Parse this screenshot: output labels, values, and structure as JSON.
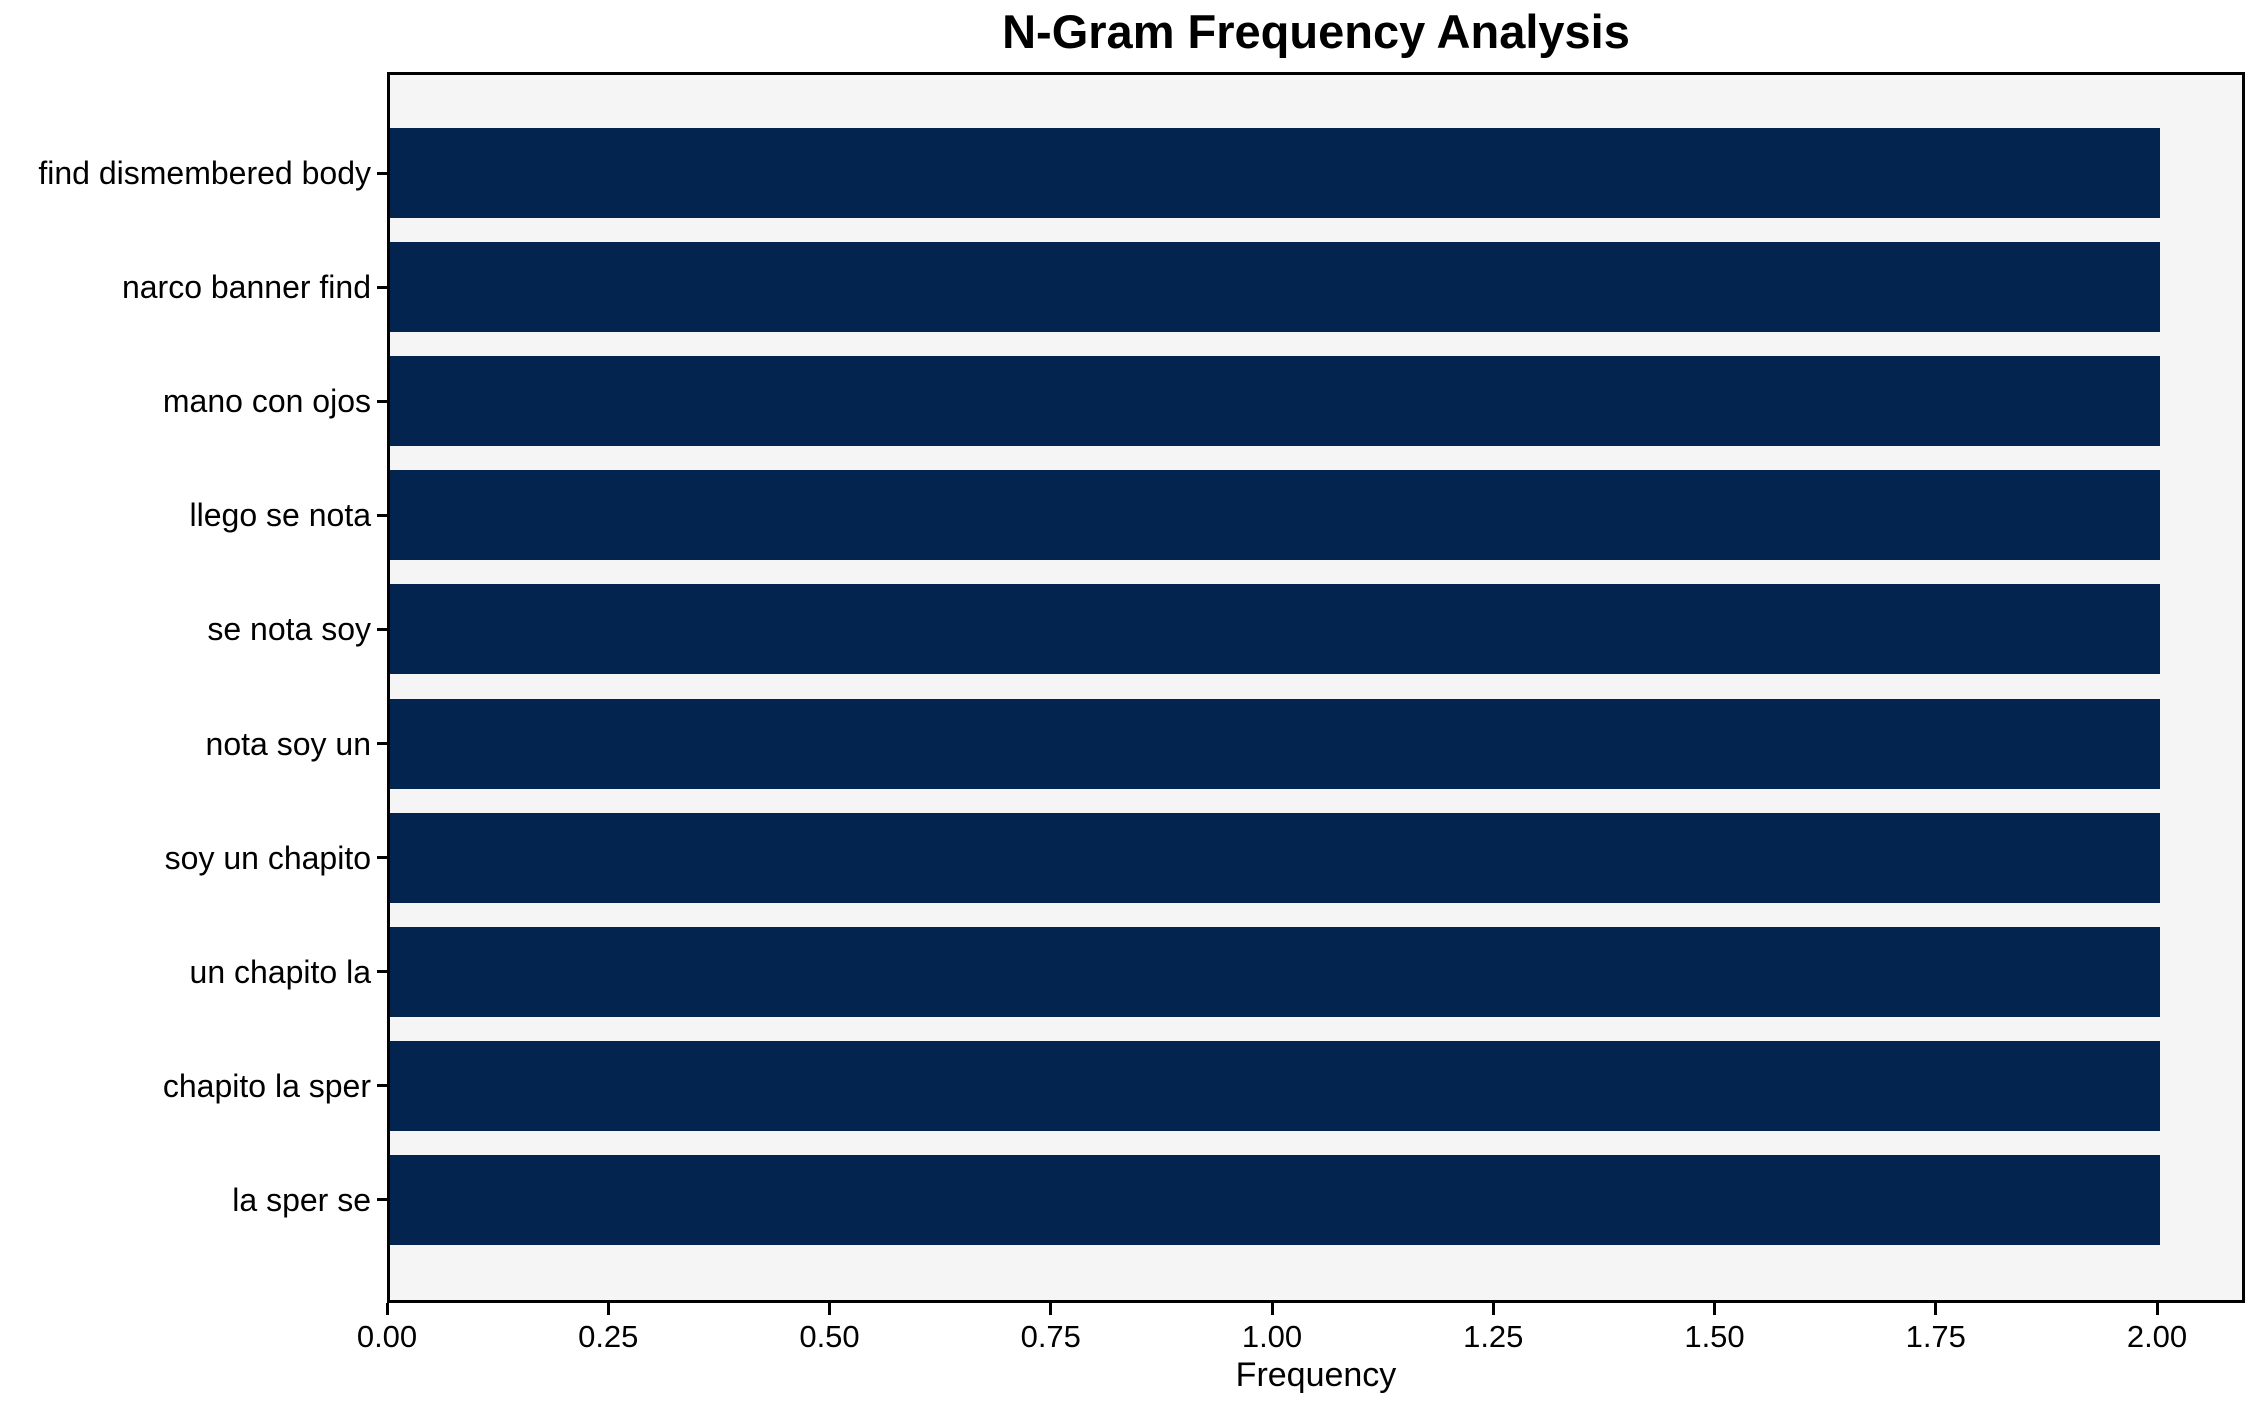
{
  "chart_data": {
    "type": "bar",
    "orientation": "horizontal",
    "title": "N-Gram Frequency Analysis",
    "xlabel": "Frequency",
    "ylabel": "",
    "categories": [
      "find dismembered body",
      "narco banner find",
      "mano con ojos",
      "llego se nota",
      "se nota soy",
      "nota soy un",
      "soy un chapito",
      "un chapito la",
      "chapito la sper",
      "la sper se"
    ],
    "values": [
      2,
      2,
      2,
      2,
      2,
      2,
      2,
      2,
      2,
      2
    ],
    "x_tick_values": [
      0,
      0.25,
      0.5,
      0.75,
      1.0,
      1.25,
      1.5,
      1.75,
      2.0
    ],
    "x_tick_labels": [
      "0.00",
      "0.25",
      "0.50",
      "0.75",
      "1.00",
      "1.25",
      "1.50",
      "1.75",
      "2.00"
    ],
    "xlim": [
      0,
      2.1
    ],
    "grid": false,
    "legend": "none",
    "colors": {
      "bar": "#042450",
      "plot_background": "#f5f5f5",
      "figure_background": "#ffffff",
      "spine": "#000000",
      "text": "#000000"
    }
  }
}
